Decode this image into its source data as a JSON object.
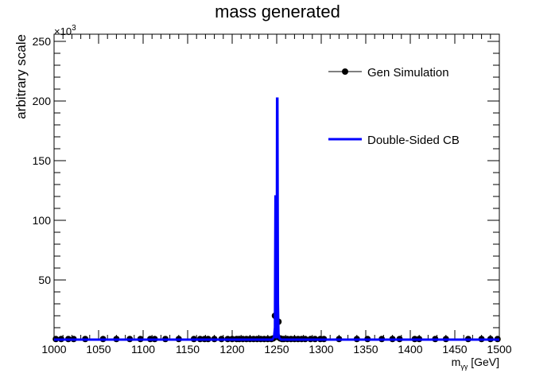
{
  "chart_data": {
    "type": "scatter",
    "title": "mass generated",
    "xlabel": "m_{γγ} [GeV]",
    "xlabel_main": "m",
    "xlabel_sub": "γγ",
    "xlabel_unit": " [GeV]",
    "ylabel": "arbitrary scale",
    "y_multiplier": "×10",
    "y_multiplier_exp": "3",
    "xlim": [
      1000,
      1500
    ],
    "ylim": [
      0,
      256
    ],
    "x_ticks": [
      1000,
      1050,
      1100,
      1150,
      1200,
      1250,
      1300,
      1350,
      1400,
      1450,
      1500
    ],
    "y_ticks": [
      50,
      100,
      150,
      200,
      250
    ],
    "grid": false,
    "legend_position": "top-right",
    "series": [
      {
        "name": "Gen Simulation",
        "kind": "points",
        "color": "#000000",
        "x": [
          1002,
          1008,
          1016,
          1022,
          1035,
          1055,
          1070,
          1085,
          1097,
          1108,
          1113,
          1125,
          1140,
          1157,
          1164,
          1169,
          1173,
          1180,
          1188,
          1195,
          1200,
          1205,
          1208,
          1212,
          1216,
          1220,
          1224,
          1228,
          1232,
          1236,
          1240,
          1244,
          1246,
          1248,
          1250,
          1252,
          1254,
          1256,
          1258,
          1262,
          1266,
          1270,
          1274,
          1278,
          1282,
          1288,
          1293,
          1299,
          1303,
          1320,
          1340,
          1352,
          1368,
          1380,
          1388,
          1405,
          1410,
          1428,
          1440,
          1465,
          1480,
          1490,
          1498
        ],
        "y": [
          0.5,
          0.5,
          0.5,
          0.5,
          0.5,
          0.5,
          0.5,
          0.5,
          0.5,
          0.5,
          0.5,
          0.5,
          0.5,
          0.5,
          0.5,
          0.5,
          0.5,
          0.5,
          0.5,
          0.5,
          0.5,
          0.5,
          0.5,
          0.5,
          0.5,
          0.5,
          0.5,
          0.5,
          0.5,
          0.5,
          0.5,
          0.5,
          1,
          20,
          3,
          15,
          1,
          0.5,
          0.5,
          0.5,
          0.5,
          0.5,
          0.5,
          0.5,
          0.5,
          0.5,
          0.5,
          0.5,
          0.5,
          0.5,
          0.5,
          0.5,
          0.5,
          0.5,
          0.5,
          0.5,
          0.5,
          0.5,
          0.5,
          0.5,
          0.5,
          0.5,
          0.5
        ]
      },
      {
        "name": "Double-Sided CB",
        "kind": "line",
        "color": "#0000ff",
        "x": [
          1000,
          1245,
          1247,
          1248,
          1248.6,
          1249.2,
          1249.6,
          1250,
          1250.4,
          1250.8,
          1251.4,
          1252,
          1253,
          1255,
          1500
        ],
        "y": [
          0,
          0,
          2,
          10,
          120,
          120,
          2,
          2,
          202,
          202,
          30,
          5,
          1,
          0,
          0
        ]
      }
    ]
  }
}
